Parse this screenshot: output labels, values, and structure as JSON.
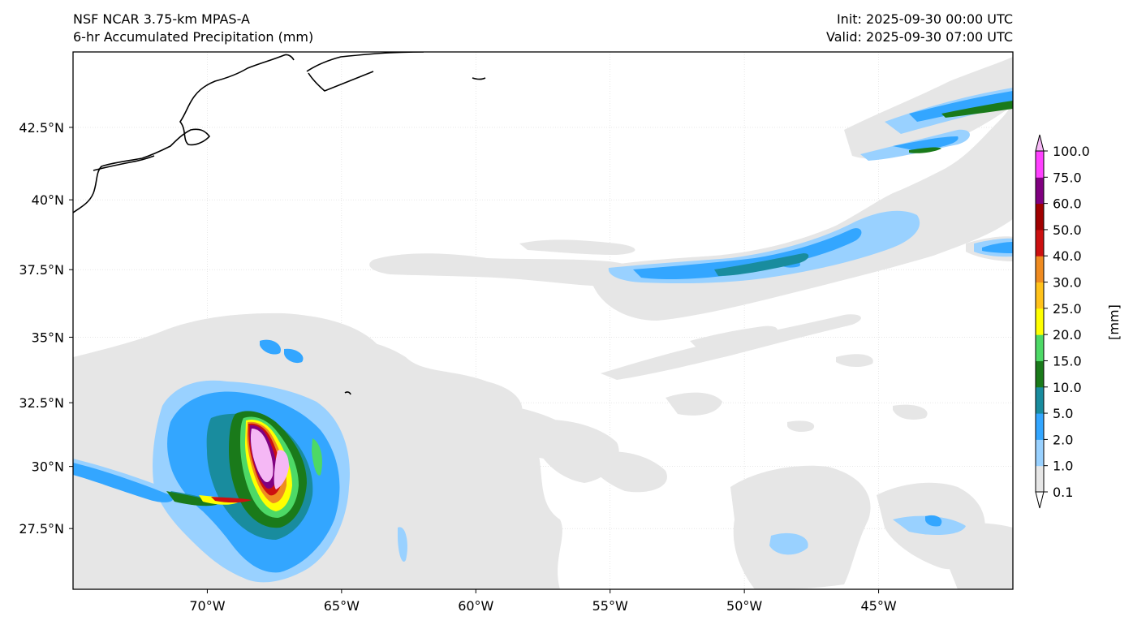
{
  "header": {
    "model": "NSF NCAR 3.75-km MPAS-A",
    "field": "6-hr Accumulated Precipitation (mm)",
    "init": "Init: 2025-09-30 00:00 UTC",
    "valid": "Valid: 2025-09-30 07:00 UTC"
  },
  "map": {
    "lon_range": [
      -75.0,
      -40.0
    ],
    "lat_range": [
      25.0,
      45.0
    ],
    "lon_ticks": [
      {
        "value": -70,
        "label": "70°W"
      },
      {
        "value": -65,
        "label": "65°W"
      },
      {
        "value": -60,
        "label": "60°W"
      },
      {
        "value": -55,
        "label": "55°W"
      },
      {
        "value": -50,
        "label": "50°W"
      },
      {
        "value": -45,
        "label": "45°W"
      }
    ],
    "lat_ticks": [
      {
        "value": 42.5,
        "label": "42.5°N"
      },
      {
        "value": 40,
        "label": "40°N"
      },
      {
        "value": 37.5,
        "label": "37.5°N"
      },
      {
        "value": 35,
        "label": "35°N"
      },
      {
        "value": 32.5,
        "label": "32.5°N"
      },
      {
        "value": 30,
        "label": "30°N"
      },
      {
        "value": 27.5,
        "label": "27.5°N"
      }
    ],
    "gridlines": true
  },
  "colorbar": {
    "unit_label": "[mm]",
    "extend": "both",
    "levels": [
      "0.1",
      "1.0",
      "2.0",
      "5.0",
      "10.0",
      "15.0",
      "20.0",
      "25.0",
      "30.0",
      "40.0",
      "50.0",
      "60.0",
      "75.0",
      "100.0"
    ],
    "colors": [
      "#e6e6e6",
      "#99d1ff",
      "#33a6ff",
      "#198c9e",
      "#1a7a1a",
      "#4dd966",
      "#ffff00",
      "#ffc21a",
      "#ef8b20",
      "#cc1010",
      "#a00000",
      "#800080",
      "#ff40ff",
      "#f5b8f5"
    ]
  }
}
